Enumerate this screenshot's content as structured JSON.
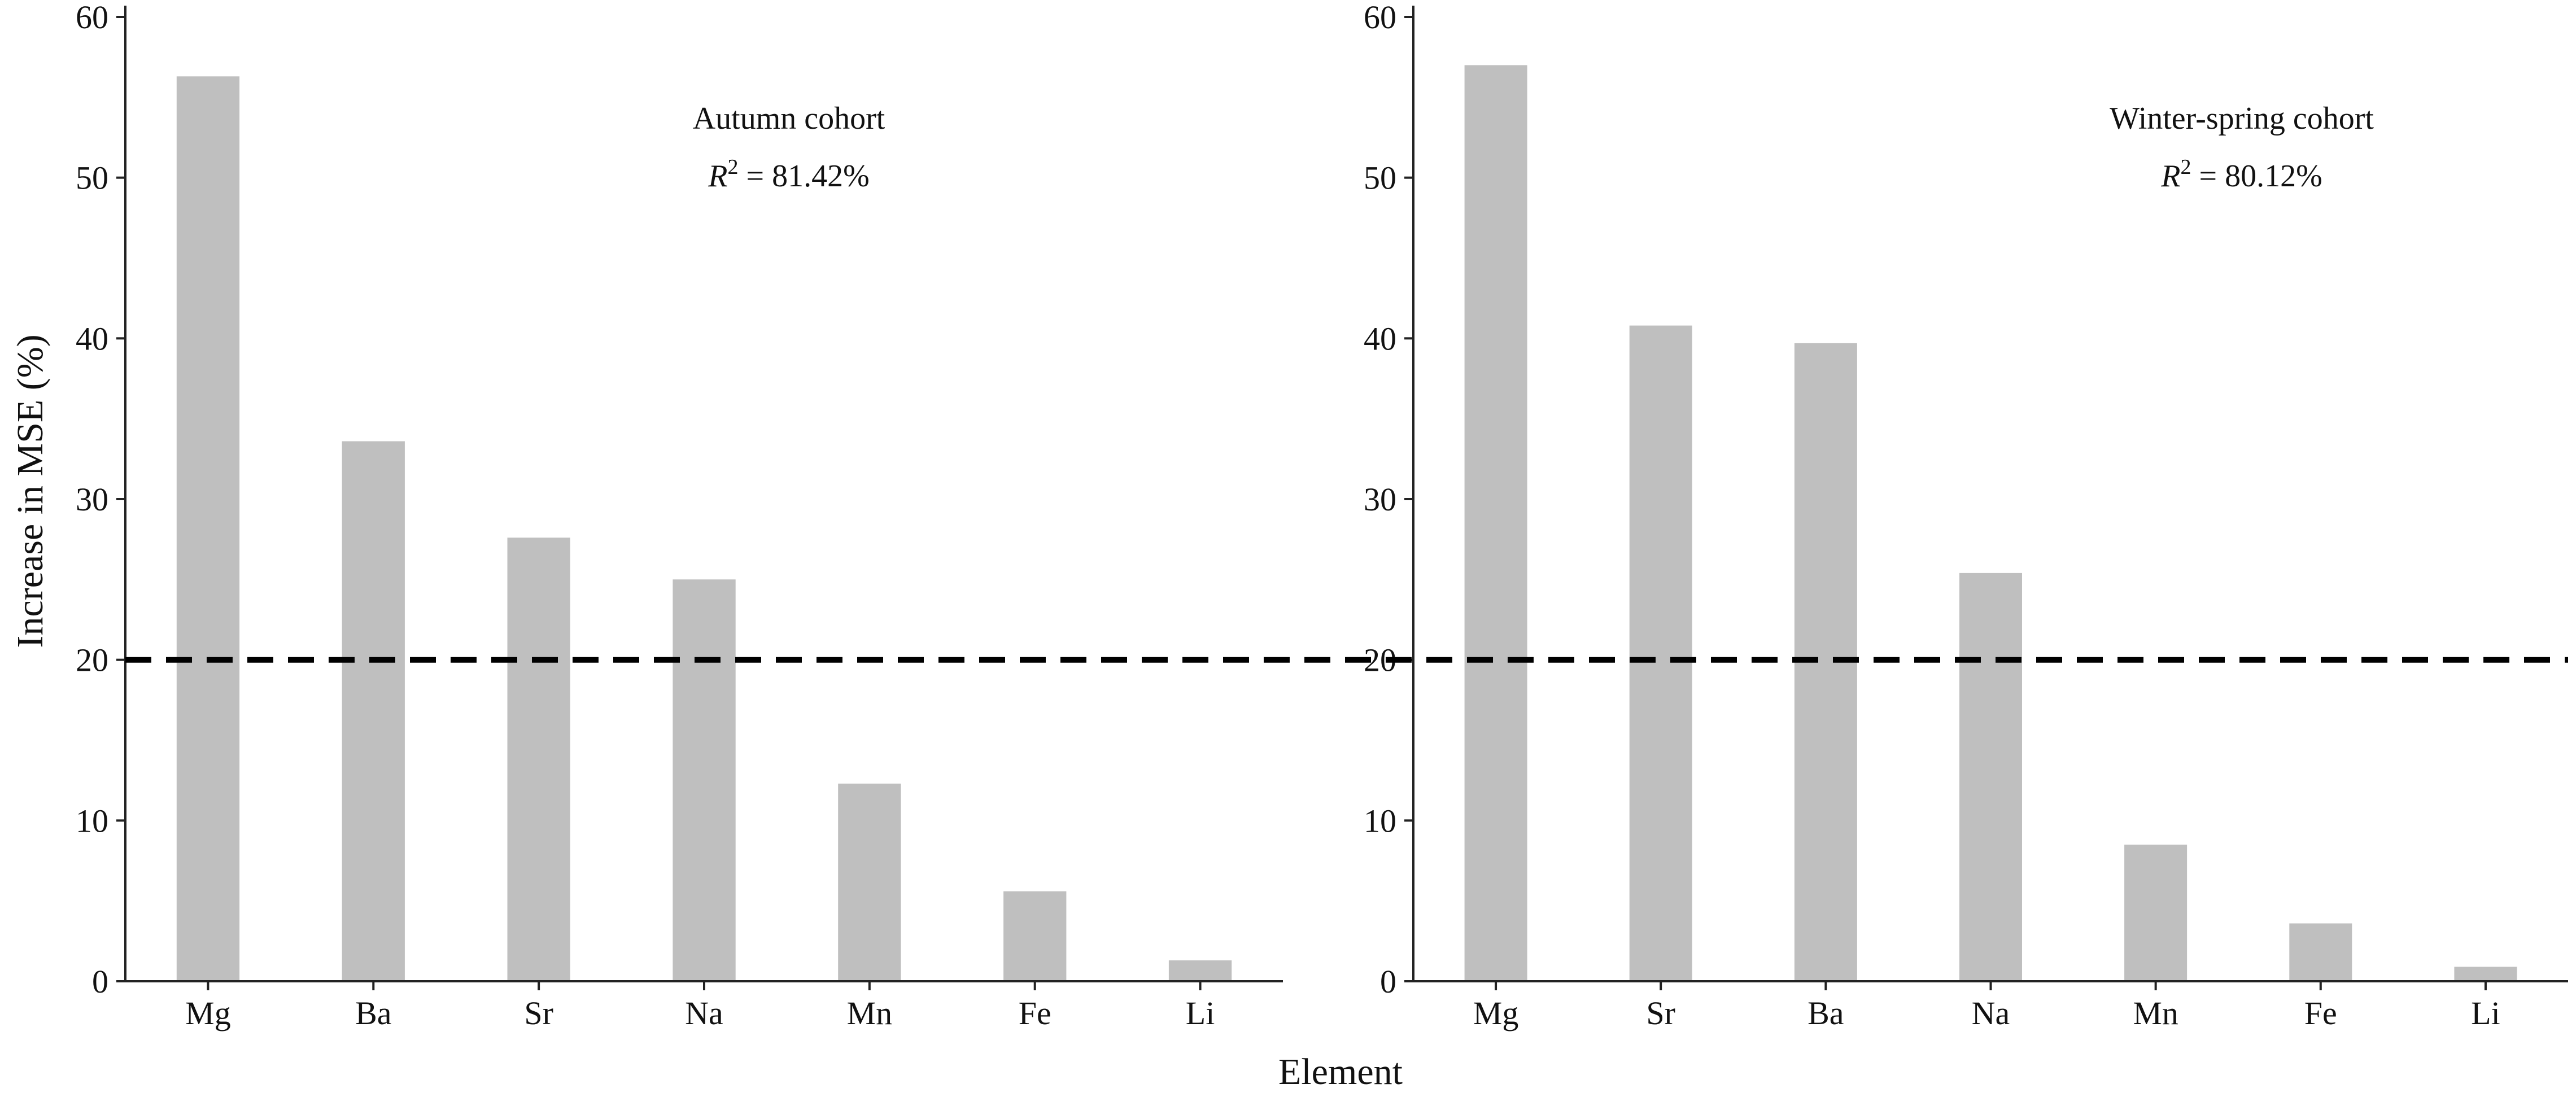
{
  "colors": {
    "bar": "#bfbfbf",
    "axis": "#222222",
    "reference_line": "#000000",
    "background": "#ffffff"
  },
  "figure": {
    "ylabel": "Increase in MSE (%)",
    "xlabel": "Element"
  },
  "chart_data": [
    {
      "type": "bar",
      "title": "Autumn cohort",
      "r2": {
        "symbol": "R",
        "exponent": "2",
        "text": " = 81.42%"
      },
      "categories": [
        "Mg",
        "Ba",
        "Sr",
        "Na",
        "Mn",
        "Fe",
        "Li"
      ],
      "values": [
        56.3,
        33.6,
        27.6,
        25.0,
        12.3,
        5.6,
        1.3
      ],
      "ylim": [
        0,
        60
      ],
      "yticks": [
        "0",
        "10",
        "20",
        "30",
        "40",
        "50",
        "60"
      ],
      "reference_line": {
        "y": 20,
        "style": "dashed"
      },
      "grid": false
    },
    {
      "type": "bar",
      "title": "Winter-spring cohort",
      "r2": {
        "symbol": "R",
        "exponent": "2",
        "text": " = 80.12%"
      },
      "categories": [
        "Mg",
        "Sr",
        "Ba",
        "Na",
        "Mn",
        "Fe",
        "Li"
      ],
      "values": [
        57.0,
        40.8,
        39.7,
        25.4,
        8.5,
        3.6,
        0.9
      ],
      "ylim": [
        0,
        60
      ],
      "yticks": [
        "0",
        "10",
        "20",
        "30",
        "40",
        "50",
        "60"
      ],
      "reference_line": {
        "y": 20,
        "style": "dashed"
      },
      "grid": false
    }
  ]
}
